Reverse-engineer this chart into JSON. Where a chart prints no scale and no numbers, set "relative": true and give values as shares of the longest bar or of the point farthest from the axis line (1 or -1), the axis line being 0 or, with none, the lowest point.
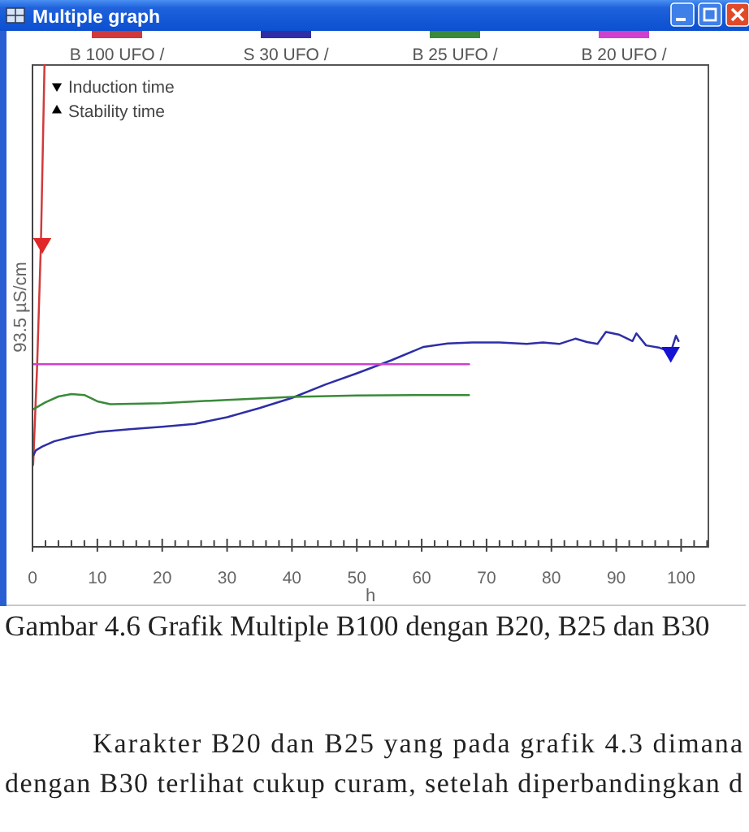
{
  "chart_data": {
    "type": "line",
    "title": "Multiple graph",
    "xlabel": "h",
    "ylabel": "93.5 µS/cm",
    "relative": true,
    "xlim": [
      0,
      104.2
    ],
    "xticks": [
      0,
      {
        "value": 2,
        "label": null
      },
      {
        "value": 4,
        "label": null
      },
      {
        "value": 6,
        "label": null
      },
      {
        "value": 8,
        "label": null
      },
      10,
      {
        "value": 12,
        "label": null
      },
      {
        "value": 14,
        "label": null
      },
      {
        "value": 16,
        "label": null
      },
      {
        "value": 18,
        "label": null
      },
      20,
      {
        "value": 22,
        "label": null
      },
      {
        "value": 24,
        "label": null
      },
      {
        "value": 26,
        "label": null
      },
      {
        "value": 28,
        "label": null
      },
      30,
      {
        "value": 32,
        "label": null
      },
      {
        "value": 34,
        "label": null
      },
      {
        "value": 36,
        "label": null
      },
      {
        "value": 38,
        "label": null
      },
      40,
      {
        "value": 42,
        "label": null
      },
      {
        "value": 44,
        "label": null
      },
      {
        "value": 46,
        "label": null
      },
      {
        "value": 48,
        "label": null
      },
      50,
      {
        "value": 52,
        "label": null
      },
      {
        "value": 54,
        "label": null
      },
      {
        "value": 56,
        "label": null
      },
      {
        "value": 58,
        "label": null
      },
      60,
      {
        "value": 62,
        "label": null
      },
      {
        "value": 64,
        "label": null
      },
      {
        "value": 66,
        "label": null
      },
      {
        "value": 68,
        "label": null
      },
      70,
      {
        "value": 72,
        "label": null
      },
      {
        "value": 74,
        "label": null
      },
      {
        "value": 76,
        "label": null
      },
      {
        "value": 78,
        "label": null
      },
      80,
      {
        "value": 82,
        "label": null
      },
      {
        "value": 84,
        "label": null
      },
      {
        "value": 86,
        "label": null
      },
      {
        "value": 88,
        "label": null
      },
      90,
      {
        "value": 92,
        "label": null
      },
      {
        "value": 94,
        "label": null
      },
      {
        "value": 96,
        "label": null
      },
      {
        "value": 98,
        "label": null
      },
      100,
      {
        "value": 102,
        "label": null
      },
      {
        "value": 104,
        "label": null
      }
    ],
    "legend": "top",
    "line_style": "solid",
    "marker": "none",
    "series": [
      {
        "name": "B 100 UFO /",
        "color": "#d23a3a",
        "x": [
          0.1,
          0.7,
          1.3,
          1.85
        ],
        "values": [
          0.17,
          0.37,
          0.63,
          1.0
        ]
      },
      {
        "name": "S 30 UFO /",
        "color": "#2e2ea6",
        "x": [
          0.15,
          0.5,
          1.5,
          3.35,
          6,
          10,
          15,
          20,
          25,
          30,
          35,
          40,
          45.2,
          50,
          55.3,
          60.3,
          64,
          67.8,
          72,
          76.2,
          78.7,
          81.2,
          83.7,
          85.5,
          87.1,
          88.4,
          90.5,
          92.5,
          93.1,
          94.6,
          96.7,
          98.4,
          99.2,
          99.6
        ],
        "values": [
          0.19,
          0.2,
          0.208,
          0.219,
          0.228,
          0.238,
          0.244,
          0.249,
          0.255,
          0.269,
          0.288,
          0.309,
          0.337,
          0.36,
          0.387,
          0.415,
          0.422,
          0.424,
          0.424,
          0.421,
          0.424,
          0.421,
          0.432,
          0.425,
          0.421,
          0.446,
          0.44,
          0.427,
          0.443,
          0.418,
          0.413,
          0.404,
          0.438,
          0.427
        ]
      },
      {
        "name": "B 25 UFO /",
        "color": "#3a8a3a",
        "x": [
          0.2,
          2,
          4,
          6,
          8,
          10,
          12,
          20,
          30,
          40,
          50,
          60,
          67.3
        ],
        "values": [
          0.286,
          0.3,
          0.312,
          0.317,
          0.315,
          0.302,
          0.296,
          0.298,
          0.305,
          0.311,
          0.314,
          0.315,
          0.315
        ]
      },
      {
        "name": "B 20 UFO /",
        "color": "#cf40cf",
        "x": [
          0.2,
          30,
          67.3
        ],
        "values": [
          0.379,
          0.379,
          0.379
        ]
      },
      {
        "type": "scatter",
        "marker": "triangle-down",
        "color": "#e02828",
        "x": [
          1.5
        ],
        "values": [
          0.63
        ]
      },
      {
        "type": "scatter",
        "marker": "triangle-down",
        "color": "#1414d2",
        "x": [
          98.4
        ],
        "values": [
          0.404
        ]
      }
    ],
    "annotations": [
      "Induction time",
      "Stability time",
      "Gambar 4.6 Grafik Multiple B100 dengan B20, B25 dan B30",
      "Karakter B20 dan B25 yang pada grafik 4.3 dimana",
      "dengan B30 terlihat cukup curam, setelah diperbandingkan d"
    ]
  }
}
